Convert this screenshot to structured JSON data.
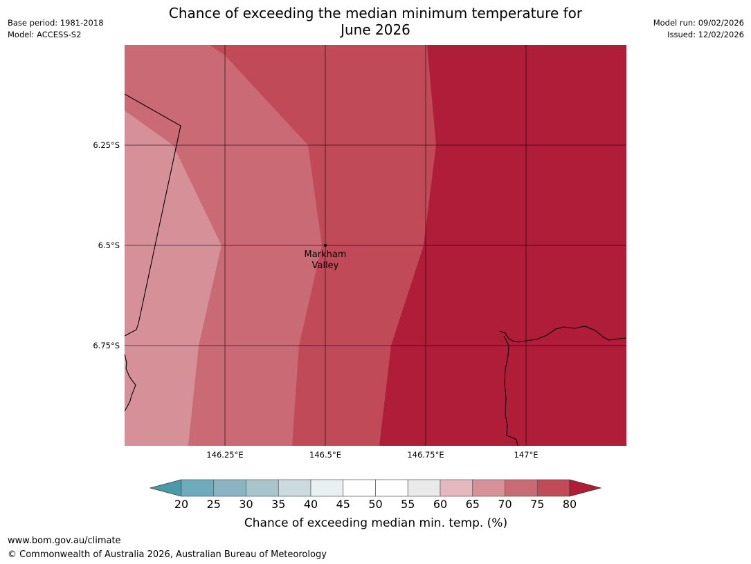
{
  "header": {
    "title_line1": "Chance of exceeding the median minimum temperature for",
    "title_line2": "June 2026",
    "base_period": "Base period: 1981-2018",
    "model": "Model: ACCESS-S2",
    "model_run": "Model run: 09/02/2026",
    "issued": "Issued: 12/02/2026"
  },
  "map": {
    "lat_labels": [
      "6.25°S",
      "6.5°S",
      "6.75°S"
    ],
    "lon_labels": [
      "146.25°E",
      "146.5°E",
      "146.75°E",
      "147°E"
    ],
    "place_label_line1": "Markham",
    "place_label_line2": "Valley",
    "zone_colors": {
      "p65": "#d69198",
      "p70": "#c96a74",
      "p75": "#c04a57",
      "p80": "#b01d39"
    }
  },
  "colorbar": {
    "ticks": [
      "20",
      "25",
      "30",
      "35",
      "40",
      "45",
      "50",
      "55",
      "60",
      "65",
      "70",
      "75",
      "80"
    ],
    "label": "Chance of exceeding median min. temp. (%)",
    "colors": [
      "#4a9ba9",
      "#6daabc",
      "#8ab4c3",
      "#a9c5cc",
      "#cbdade",
      "#e9f0f2",
      "#ffffff",
      "#ffffff",
      "#e9e9e9",
      "#e4b8bc",
      "#d69198",
      "#c96a74",
      "#c04a57",
      "#b01d39"
    ]
  },
  "footer": {
    "url": "www.bom.gov.au/climate",
    "copyright": "© Commonwealth of Australia 2026, Australian Bureau of Meteorology"
  }
}
